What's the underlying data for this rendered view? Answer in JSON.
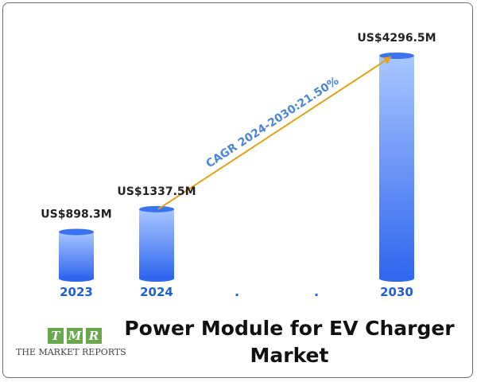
{
  "chart_data": {
    "type": "bar",
    "title": "Power Module for EV Charger Market",
    "categories": [
      "2023",
      "2024",
      ".",
      ".",
      "2030"
    ],
    "values": [
      898.3,
      1337.5,
      null,
      null,
      4296.5
    ],
    "value_labels": [
      "US$898.3M",
      "US$1337.5M",
      "",
      "",
      "US$4296.5M"
    ],
    "annotation": "CAGR 2024-2030:21.50%",
    "bar_style": "cylinder",
    "grid": false,
    "legend": "none"
  },
  "title_lines": [
    "Power Module for EV Charger",
    "Market"
  ],
  "logo": {
    "letters": [
      "T",
      "M",
      "R"
    ],
    "name": "THE MARKET REPORTS"
  },
  "colors": {
    "bar_top": "#a9c6ff",
    "bar_bottom": "#2f66ee",
    "year": "#1f5fd6",
    "arrow": "#e0a21a",
    "cagr": "#4a86d8",
    "logo_green": "#6aa84f"
  }
}
